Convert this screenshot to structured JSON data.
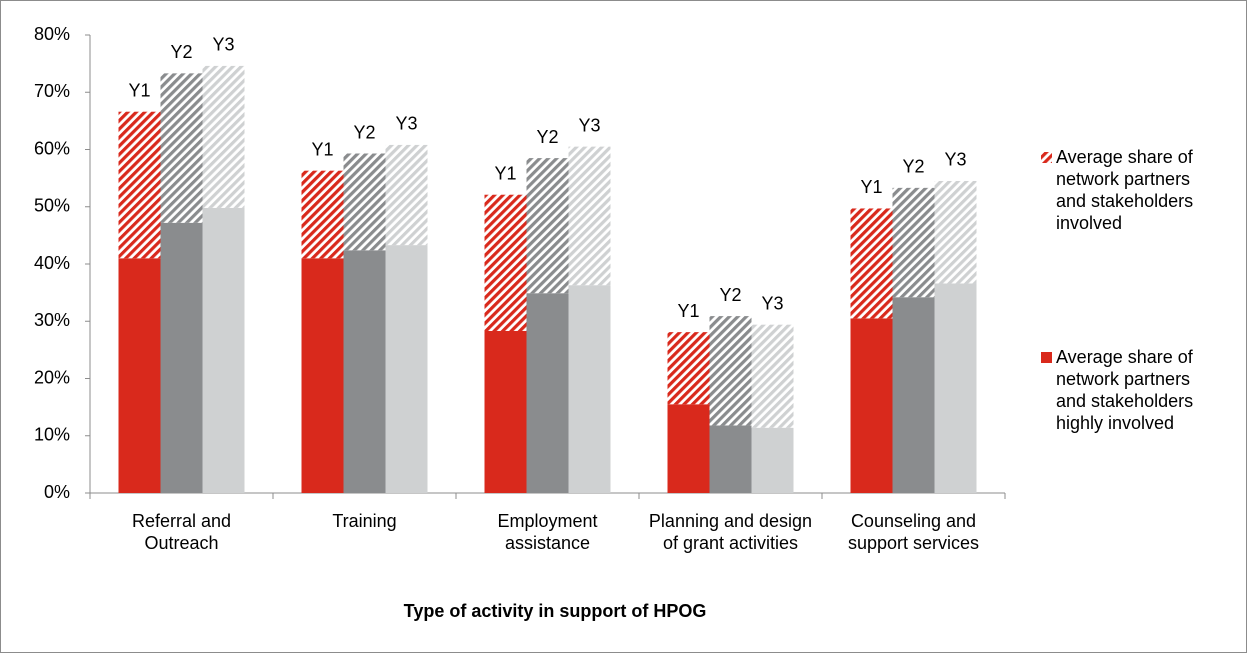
{
  "chart_data": {
    "type": "grouped-stacked-bar",
    "x_axis_title": "Type of activity in support of HPOG",
    "categories": [
      "Referral and Outreach",
      "Training",
      "Employment assistance",
      "Planning and design of grant activities",
      "Counseling and support services"
    ],
    "groups": [
      "Y1",
      "Y2",
      "Y3"
    ],
    "group_colors": [
      "#d9291c",
      "#8a8c8e",
      "#cfd1d2"
    ],
    "series": [
      {
        "name": "Average share of network partners and stakeholders highly involved",
        "pattern": "solid",
        "color": "#d9291c",
        "values": [
          [
            41,
            47.2,
            49.8
          ],
          [
            41,
            42.4,
            43.3
          ],
          [
            28.3,
            34.9,
            36.3
          ],
          [
            15.5,
            11.8,
            11.4
          ],
          [
            30.5,
            34.2,
            36.6
          ]
        ]
      },
      {
        "name": "Average share of network partners and stakeholders involved",
        "pattern": "hatched",
        "color": "#d9291c",
        "values": [
          [
            25.6,
            26.1,
            24.8
          ],
          [
            15.3,
            16.9,
            17.5
          ],
          [
            23.8,
            23.6,
            24.2
          ],
          [
            12.6,
            19.1,
            18.0
          ],
          [
            19.2,
            19.1,
            17.9
          ]
        ]
      }
    ],
    "ylim": [
      0,
      80
    ],
    "yticks": [
      {
        "value": 0,
        "label": "0%"
      },
      {
        "value": 10,
        "label": "10%"
      },
      {
        "value": 20,
        "label": "20%"
      },
      {
        "value": 30,
        "label": "30%"
      },
      {
        "value": 40,
        "label": "40%"
      },
      {
        "value": 50,
        "label": "50%"
      },
      {
        "value": 60,
        "label": "60%"
      },
      {
        "value": 70,
        "label": "70%"
      },
      {
        "value": 80,
        "label": "80%"
      }
    ],
    "legend": "right",
    "grid": false
  }
}
